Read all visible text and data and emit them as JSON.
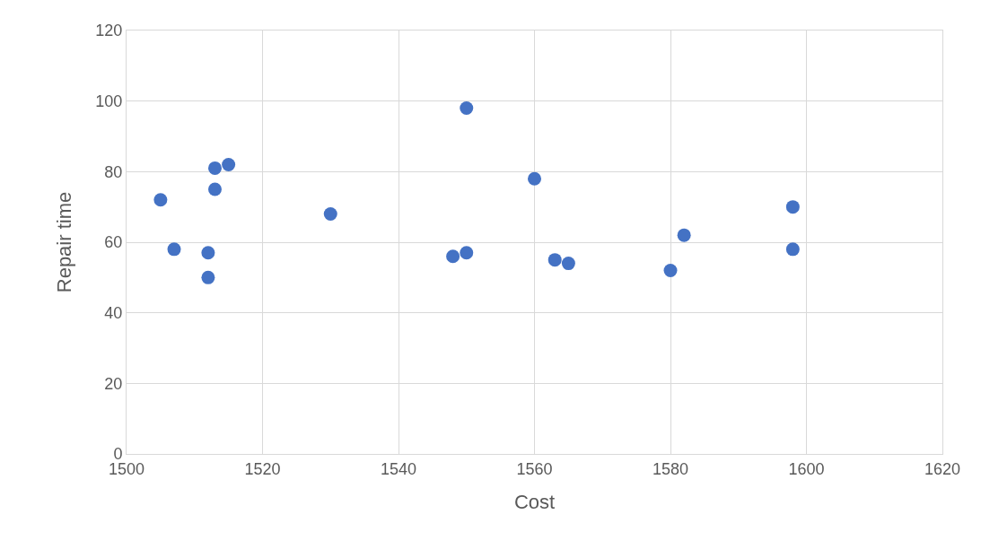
{
  "chart_data": {
    "type": "scatter",
    "xlabel": "Cost",
    "ylabel": "Repair time",
    "x": [
      1505,
      1507,
      1512,
      1512,
      1513,
      1513,
      1515,
      1530,
      1548,
      1550,
      1550,
      1560,
      1563,
      1565,
      1580,
      1582,
      1598,
      1598
    ],
    "values": [
      72,
      58,
      57,
      50,
      81,
      75,
      82,
      68,
      56,
      57,
      98,
      78,
      55,
      54,
      52,
      62,
      70,
      58
    ],
    "color": "#4472c4",
    "marker": "circle",
    "xlim": [
      1500,
      1620
    ],
    "xticks": [
      1500,
      1520,
      1540,
      1560,
      1580,
      1600,
      1620
    ],
    "ylim": [
      0,
      120
    ],
    "yticks": [
      0,
      20,
      40,
      60,
      80,
      100,
      120
    ],
    "grid": true
  }
}
